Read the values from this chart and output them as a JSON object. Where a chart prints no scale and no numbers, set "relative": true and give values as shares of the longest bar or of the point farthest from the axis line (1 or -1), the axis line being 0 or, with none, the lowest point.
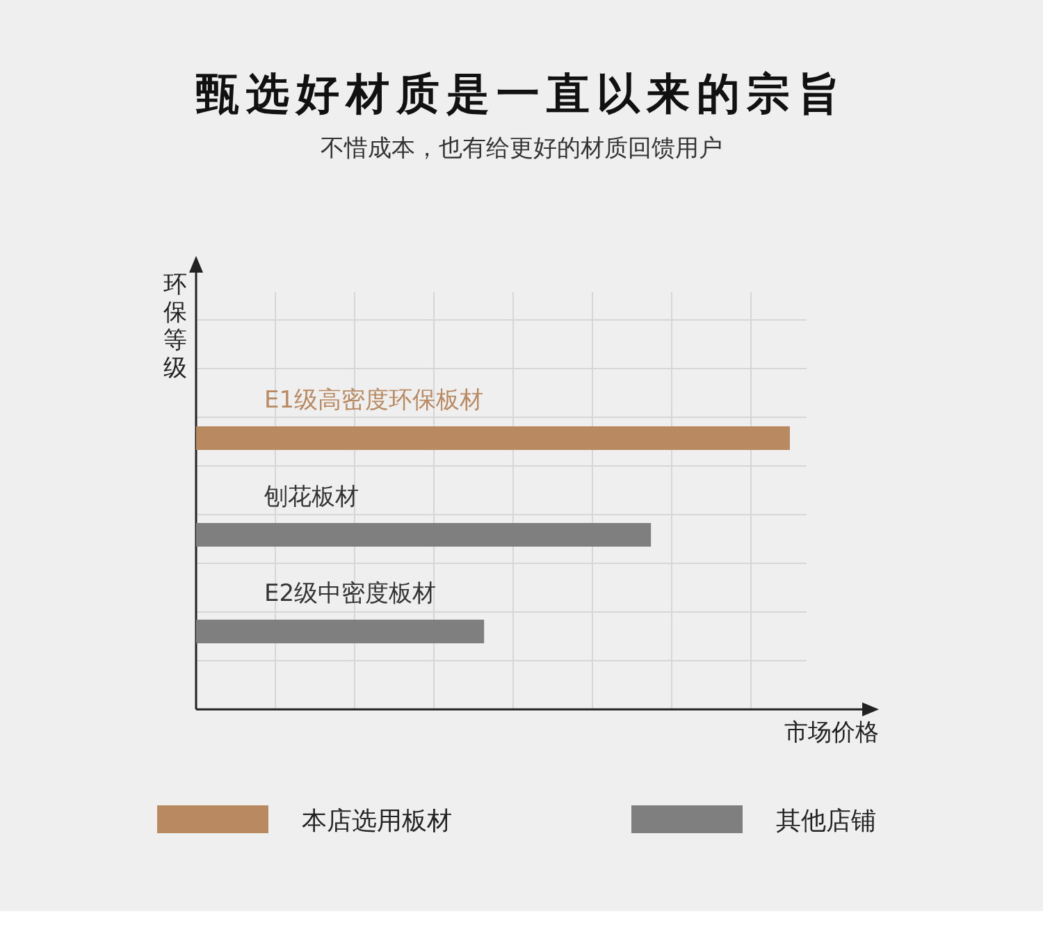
{
  "chart_data": {
    "type": "bar",
    "orientation": "horizontal",
    "relative": true,
    "grid": true,
    "legend": "bottom",
    "title": "甄选好材质是一直以来的宗旨",
    "subtitle": "不惜成本，也有给更好的材质回馈用户",
    "xlabel": "市场价格",
    "ylabel": "环保等级",
    "categories": [
      "E1级高密度环保板材",
      "刨花板材",
      "E2级中密度板材"
    ],
    "series": [
      {
        "name": "本店选用板材",
        "color": "#b98a62",
        "values": [
          1,
          null,
          null
        ]
      },
      {
        "name": "其他店铺",
        "color": "#7f7f80",
        "values": [
          null,
          0.766,
          0.485
        ]
      }
    ]
  }
}
